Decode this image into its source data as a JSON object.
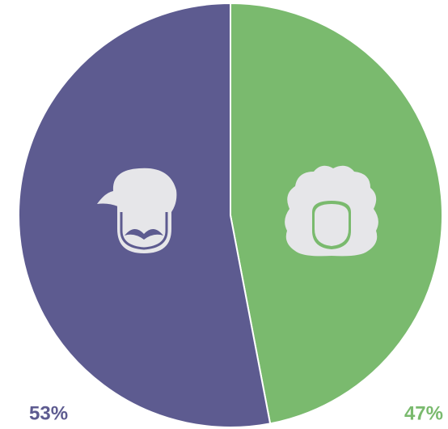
{
  "chart_data": {
    "type": "pie",
    "values": [
      47,
      53
    ],
    "value_labels": [
      "47%",
      "53%"
    ],
    "colors": [
      "#7aba6e",
      "#5d5b90"
    ],
    "start_angle": 0,
    "direction": "clockwise"
  }
}
